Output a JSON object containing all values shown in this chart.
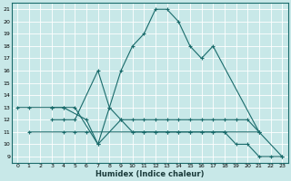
{
  "xlabel": "Humidex (Indice chaleur)",
  "background_color": "#c8e8e8",
  "grid_color": "#b8d8d8",
  "line_color": "#1a6b6b",
  "xlim": [
    -0.5,
    23.5
  ],
  "ylim": [
    8.5,
    21.5
  ],
  "xticks": [
    0,
    1,
    2,
    3,
    4,
    5,
    6,
    7,
    8,
    9,
    10,
    11,
    12,
    13,
    14,
    15,
    16,
    17,
    18,
    19,
    20,
    21,
    22,
    23
  ],
  "yticks": [
    9,
    10,
    11,
    12,
    13,
    14,
    15,
    16,
    17,
    18,
    19,
    20,
    21
  ],
  "series": [
    {
      "x": [
        0,
        1,
        3,
        4,
        5,
        7,
        8,
        9,
        10,
        11,
        12,
        13,
        14,
        15,
        16,
        17,
        21,
        23
      ],
      "y": [
        13,
        13,
        13,
        13,
        13,
        10,
        13,
        16,
        18,
        19,
        21,
        21,
        20,
        18,
        17,
        18,
        11,
        9
      ]
    },
    {
      "x": [
        3,
        4,
        6,
        7,
        9,
        10,
        11,
        12,
        13,
        14,
        15,
        16,
        17,
        18,
        19,
        20,
        21
      ],
      "y": [
        13,
        13,
        12,
        10,
        12,
        12,
        12,
        12,
        12,
        12,
        12,
        12,
        12,
        12,
        12,
        12,
        11
      ]
    },
    {
      "x": [
        1,
        4,
        5,
        6,
        10,
        11,
        12,
        13,
        14,
        15,
        16,
        17,
        18,
        19,
        20,
        21,
        22,
        23
      ],
      "y": [
        11,
        11,
        11,
        11,
        11,
        11,
        11,
        11,
        11,
        11,
        11,
        11,
        11,
        10,
        10,
        9,
        9,
        9
      ]
    },
    {
      "x": [
        3,
        4,
        5,
        7,
        8,
        9,
        10,
        11,
        12,
        13,
        14,
        15,
        16,
        17,
        18,
        21
      ],
      "y": [
        12,
        12,
        12,
        16,
        13,
        12,
        11,
        11,
        11,
        11,
        11,
        11,
        11,
        11,
        11,
        11
      ]
    }
  ]
}
